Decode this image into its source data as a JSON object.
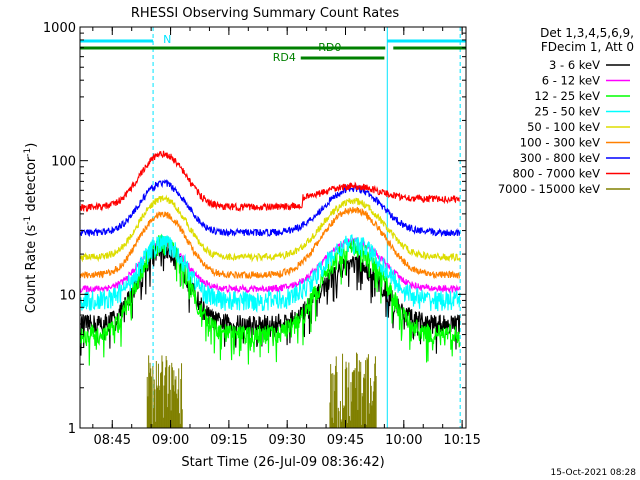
{
  "chart_data": {
    "type": "line",
    "title": "RHESSI Observing Summary Count Rates",
    "xlabel": "Start Time (26-Jul-09 08:36:42)",
    "ylabel_main": "Count Rate (s",
    "ylabel_sup1": "-1",
    "ylabel_mid": " detector",
    "ylabel_sup2": "-1",
    "ylabel_end": ")",
    "yscale": "log",
    "ylim": [
      1,
      1000
    ],
    "xlim": [
      "08:36:42",
      "10:16:00"
    ],
    "x_ticks": [
      "08:45",
      "09:00",
      "09:15",
      "09:30",
      "09:45",
      "10:00",
      "10:15"
    ],
    "y_ticks": [
      "1",
      "10",
      "100",
      "1000"
    ],
    "legend_header": [
      "Det 1,3,4,5,6,9,",
      "FDecim 1, Att 0"
    ],
    "footer_date": "15-Oct-2021 08:28",
    "flags": [
      {
        "label": "N",
        "color": "#00e5ff"
      },
      {
        "label": "RD0",
        "color": "#008000"
      },
      {
        "label": "RD4",
        "color": "#008000"
      }
    ],
    "series": [
      {
        "name": "3 - 6 keV",
        "color": "#000000",
        "min": 6,
        "peak1": 22,
        "peak2": 17
      },
      {
        "name": "6 - 12 keV",
        "color": "#ff00ff",
        "min": 11,
        "peak1": 24,
        "peak2": 25
      },
      {
        "name": "12 - 25 keV",
        "color": "#00ff00",
        "min": 5,
        "peak1": 24,
        "peak2": 22
      },
      {
        "name": "25 - 50 keV",
        "color": "#00ffff",
        "min": 9,
        "peak1": 24,
        "peak2": 24
      },
      {
        "name": "50 - 100 keV",
        "color": "#dddd00",
        "min": 19,
        "peak1": 52,
        "peak2": 50
      },
      {
        "name": "100 - 300 keV",
        "color": "#ff8000",
        "min": 14,
        "peak1": 40,
        "peak2": 43
      },
      {
        "name": "300 - 800 keV",
        "color": "#0000ff",
        "min": 29,
        "peak1": 68,
        "peak2": 62
      },
      {
        "name": "800 - 7000 keV",
        "color": "#ff0000",
        "min": 45,
        "peak1": 112,
        "peak2": 56
      },
      {
        "name": "7000 - 15000 keV",
        "color": "#808000",
        "min": 1,
        "peak1": 2.5,
        "peak2": 2.7
      }
    ]
  }
}
